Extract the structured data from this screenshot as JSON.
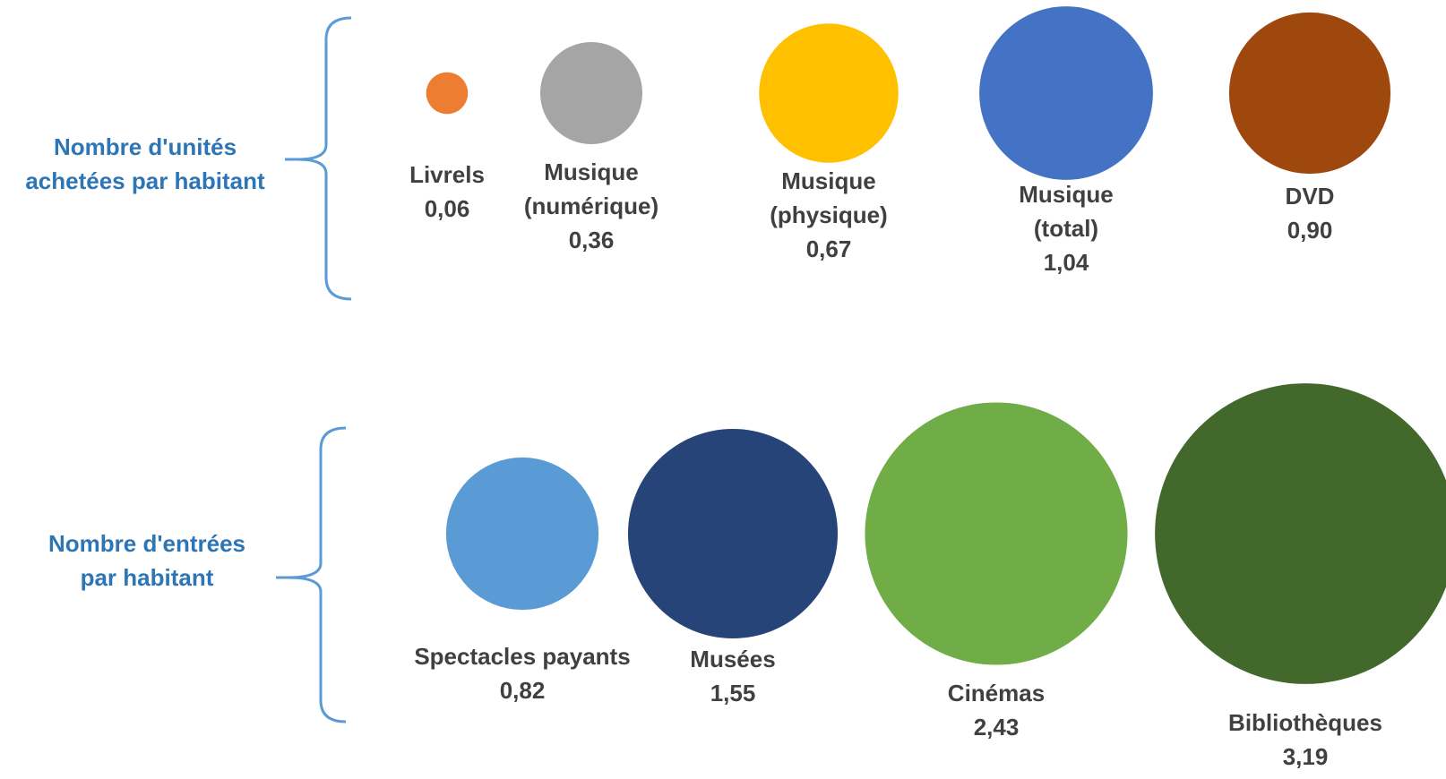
{
  "chart_data": [
    {
      "type": "bubble",
      "group_label": [
        "Nombre d'unités",
        "achetées par habitant"
      ],
      "items": [
        {
          "label": [
            "Livrels"
          ],
          "value": 0.06,
          "value_text": "0,06",
          "color": "#ED7D31"
        },
        {
          "label": [
            "Musique",
            "(numérique)"
          ],
          "value": 0.36,
          "value_text": "0,36",
          "color": "#A5A5A5"
        },
        {
          "label": [
            "Musique",
            "(physique)"
          ],
          "value": 0.67,
          "value_text": "0,67",
          "color": "#FFC000"
        },
        {
          "label": [
            "Musique",
            "(total)"
          ],
          "value": 1.04,
          "value_text": "1,04",
          "color": "#4472C4"
        },
        {
          "label": [
            "DVD"
          ],
          "value": 0.9,
          "value_text": "0,90",
          "color": "#9E480E"
        }
      ]
    },
    {
      "type": "bubble",
      "group_label": [
        "Nombre d'entrées",
        "par habitant"
      ],
      "items": [
        {
          "label": [
            "Spectacles payants"
          ],
          "value": 0.82,
          "value_text": "0,82",
          "color": "#5B9BD5"
        },
        {
          "label": [
            "Musées"
          ],
          "value": 1.55,
          "value_text": "1,55",
          "color": "#264478"
        },
        {
          "label": [
            "Cinémas"
          ],
          "value": 2.43,
          "value_text": "2,43",
          "color": "#70AD47"
        },
        {
          "label": [
            "Bibliothèques"
          ],
          "value": 3.19,
          "value_text": "3,19",
          "color": "#43682B"
        }
      ]
    }
  ],
  "colors": {
    "group_label": "#2E75B6",
    "brace": "#5B9BD5",
    "item_label": "#404040"
  }
}
